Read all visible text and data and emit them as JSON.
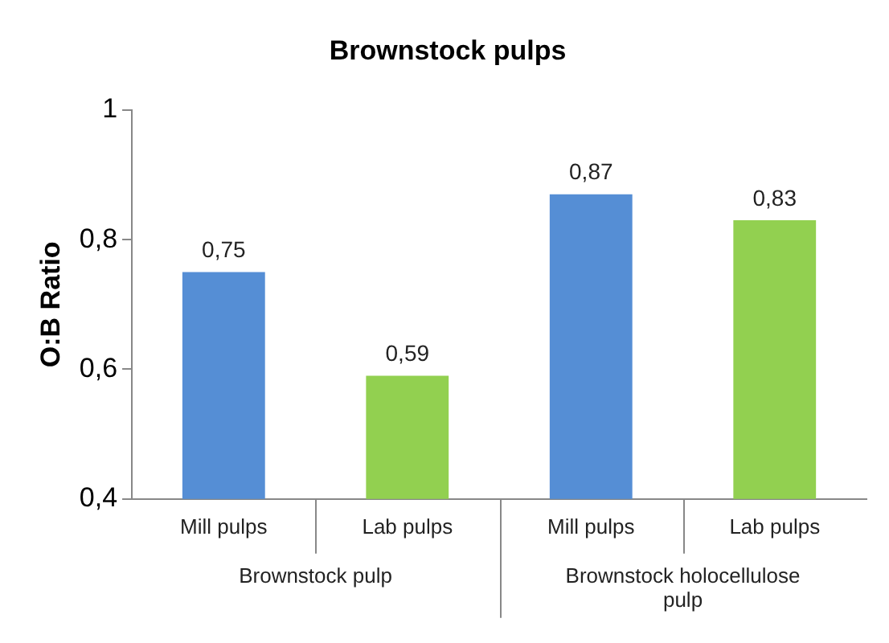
{
  "chart_data": {
    "type": "bar",
    "title": "Brownstock pulps",
    "ylabel": "O:B Ratio",
    "categories": [
      "Mill pulps",
      "Lab pulps",
      "Mill pulps",
      "Lab pulps"
    ],
    "values": [
      0.75,
      0.59,
      0.87,
      0.83
    ],
    "colors": [
      "#558ed5",
      "#92d050",
      "#558ed5",
      "#92d050"
    ],
    "value_labels": [
      "0,75",
      "0,59",
      "0,87",
      "0,83"
    ],
    "ylim": [
      0.4,
      1
    ],
    "yticks": [
      {
        "value": 0.4,
        "label": "0,4"
      },
      {
        "value": 0.6,
        "label": "0,6"
      },
      {
        "value": 0.8,
        "label": "0,8"
      },
      {
        "value": 1,
        "label": "1"
      }
    ],
    "annotations": [
      "Brownstock pulp",
      "Brownstock holocellulose pulp"
    ],
    "grid": false,
    "legend": false
  }
}
